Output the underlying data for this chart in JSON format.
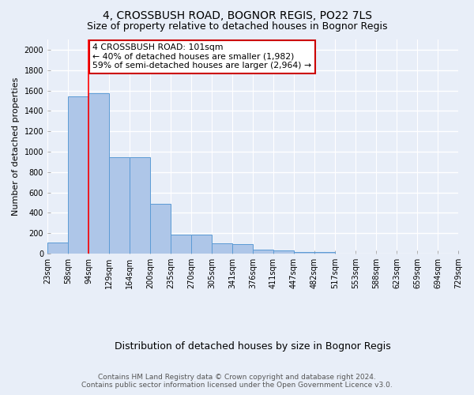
{
  "title1": "4, CROSSBUSH ROAD, BOGNOR REGIS, PO22 7LS",
  "title2": "Size of property relative to detached houses in Bognor Regis",
  "xlabel": "Distribution of detached houses by size in Bognor Regis",
  "ylabel": "Number of detached properties",
  "bar_values": [
    110,
    1540,
    1570,
    945,
    945,
    490,
    190,
    185,
    100,
    95,
    40,
    30,
    20,
    15,
    0,
    0,
    0,
    0,
    0,
    0
  ],
  "categories": [
    "23sqm",
    "58sqm",
    "94sqm",
    "129sqm",
    "164sqm",
    "200sqm",
    "235sqm",
    "270sqm",
    "305sqm",
    "341sqm",
    "376sqm",
    "411sqm",
    "447sqm",
    "482sqm",
    "517sqm",
    "553sqm",
    "588sqm",
    "623sqm",
    "659sqm",
    "694sqm",
    "729sqm"
  ],
  "bar_color": "#aec6e8",
  "bar_edge_color": "#5b9bd5",
  "bg_color": "#e8eef8",
  "grid_color": "#ffffff",
  "red_line_x": 2,
  "annotation_box_text": "4 CROSSBUSH ROAD: 101sqm\n← 40% of detached houses are smaller (1,982)\n59% of semi-detached houses are larger (2,964) →",
  "annotation_box_color": "#ffffff",
  "annotation_box_edge": "#cc0000",
  "ylim": [
    0,
    2100
  ],
  "yticks": [
    0,
    200,
    400,
    600,
    800,
    1000,
    1200,
    1400,
    1600,
    1800,
    2000
  ],
  "footer1": "Contains HM Land Registry data © Crown copyright and database right 2024.",
  "footer2": "Contains public sector information licensed under the Open Government Licence v3.0.",
  "title1_fontsize": 10,
  "title2_fontsize": 9,
  "annot_fontsize": 7.8,
  "ylabel_fontsize": 8,
  "xlabel_fontsize": 9,
  "tick_fontsize": 7,
  "footer_fontsize": 6.5
}
